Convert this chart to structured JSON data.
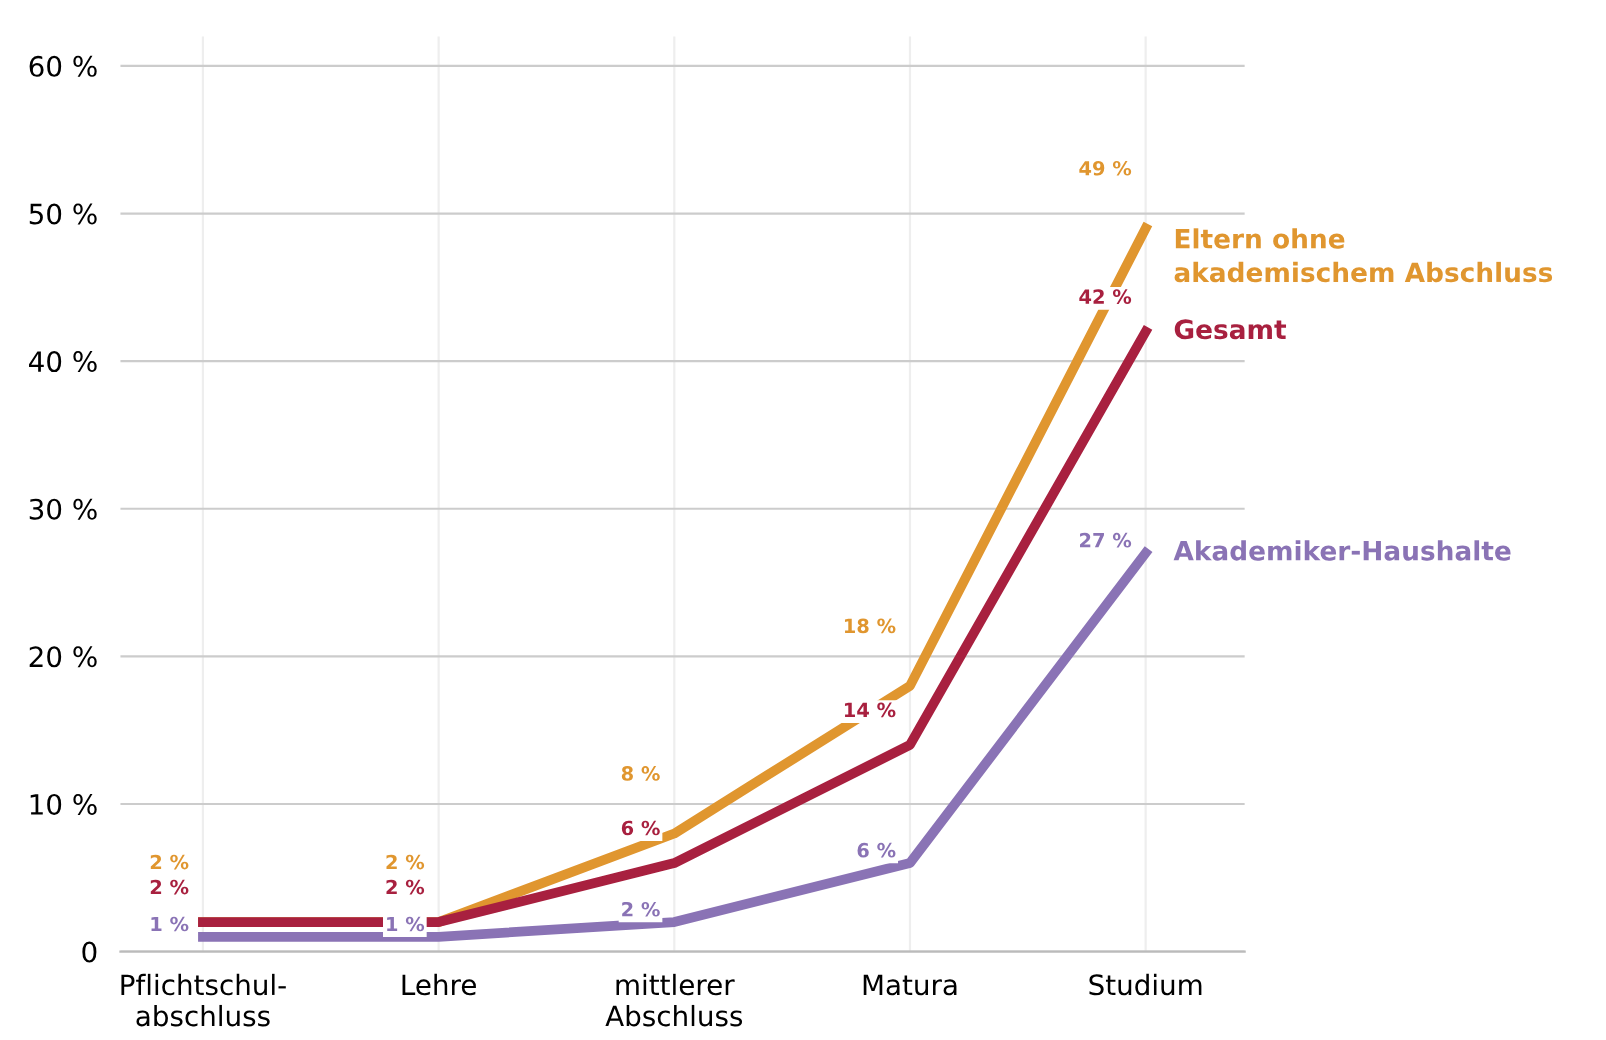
{
  "chart_data": {
    "type": "line",
    "categories": [
      "Pflichtschul-\nabschluss",
      "Lehre",
      "mittlerer\nAbschluss",
      "Matura",
      "Studium"
    ],
    "ylim": [
      0,
      62
    ],
    "yticks": [
      0,
      {
        "value": 10,
        "label": "10 %"
      },
      {
        "value": 20,
        "label": "20 %"
      },
      {
        "value": 30,
        "label": "30 %"
      },
      {
        "value": 40,
        "label": "40 %"
      },
      {
        "value": 50,
        "label": "50 %"
      },
      {
        "value": 60,
        "label": "60 %"
      }
    ],
    "grid": true,
    "legend": false,
    "marker": "none",
    "line_style": "solid",
    "series": [
      {
        "name": "Eltern ohne\nakademischem Abschluss",
        "color": "#e0962f",
        "values": [
          2,
          2,
          8,
          18,
          49
        ],
        "value_labels": [
          "2 %",
          "2 %",
          "8 %",
          "18 %",
          "49 %"
        ]
      },
      {
        "name": "Gesamt",
        "color": "#a8203f",
        "values": [
          2,
          2,
          6,
          14,
          42
        ],
        "value_labels": [
          "2 %",
          "2 %",
          "6 %",
          "14 %",
          "42 %"
        ]
      },
      {
        "name": "Akademiker-Haushalte",
        "color": "#8a73b5",
        "values": [
          1,
          1,
          2,
          6,
          27
        ],
        "value_labels": [
          "1 %",
          "1 %",
          "2 %",
          "6 %",
          "27 %"
        ]
      }
    ]
  }
}
